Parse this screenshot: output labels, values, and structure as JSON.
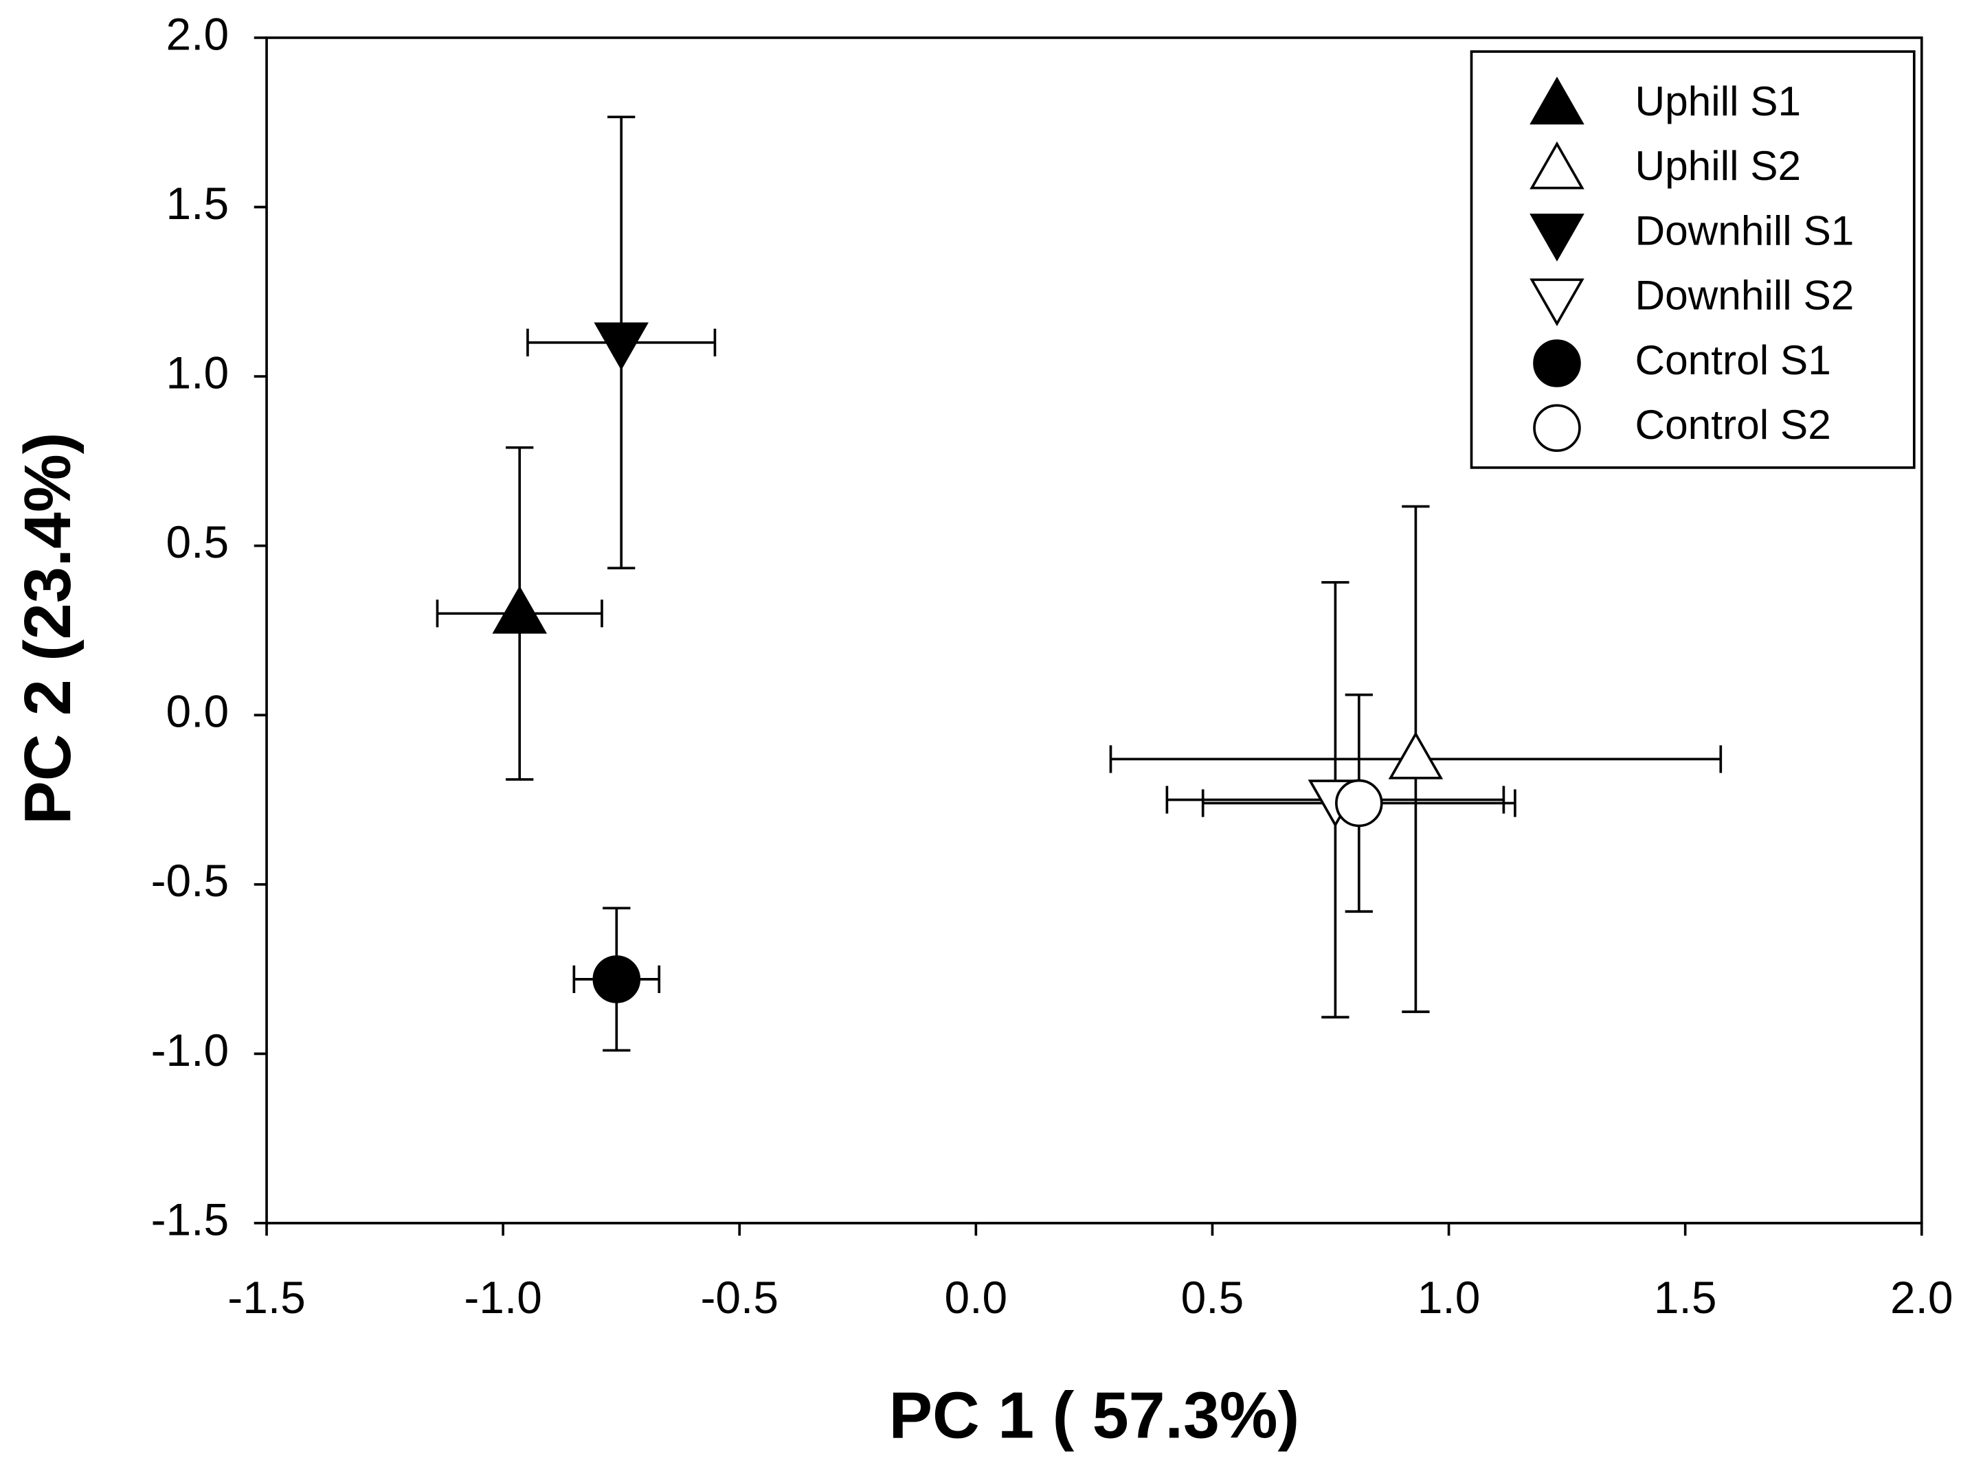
{
  "chart_data": {
    "type": "scatter",
    "xlabel": "PC 1 ( 57.3%)",
    "ylabel": "PC 2 (23.4%)",
    "xlim": [
      -1.5,
      2.0
    ],
    "ylim": [
      -1.5,
      2.0
    ],
    "xticks": [
      {
        "value": -1.5,
        "label": "-1.5"
      },
      {
        "value": -1.0,
        "label": "-1.0"
      },
      {
        "value": -0.5,
        "label": "-0.5"
      },
      {
        "value": 0,
        "label": "0.0"
      },
      {
        "value": 0.5,
        "label": "0.5"
      },
      {
        "value": 1.0,
        "label": "1.0"
      },
      {
        "value": 1.5,
        "label": "1.5"
      },
      {
        "value": 2.0,
        "label": "2.0"
      }
    ],
    "yticks": [
      {
        "value": -1.5,
        "label": "-1.5"
      },
      {
        "value": -1.0,
        "label": "-1.0"
      },
      {
        "value": -0.5,
        "label": "-0.5"
      },
      {
        "value": 0,
        "label": "0.0"
      },
      {
        "value": 0.5,
        "label": "0.5"
      },
      {
        "value": 1.0,
        "label": "1.0"
      },
      {
        "value": 1.5,
        "label": "1.5"
      },
      {
        "value": 2.0,
        "label": "2.0"
      }
    ],
    "legend": "top-right",
    "series": [
      {
        "name": "Uphill S1",
        "marker": "triangle-up",
        "color": "#000000",
        "x": [
          -0.965
        ],
        "values": [
          0.3
        ],
        "xerr": [
          0.174
        ],
        "yerr": [
          0.49
        ]
      },
      {
        "name": "Uphill S2",
        "marker": "triangle-up",
        "color": "#ffffff",
        "x": [
          0.93
        ],
        "values": [
          -0.13
        ],
        "xerr": [
          0.645
        ],
        "yerr": [
          0.746
        ]
      },
      {
        "name": "Downhill S1",
        "marker": "triangle-down",
        "color": "#000000",
        "x": [
          -0.75
        ],
        "values": [
          1.1
        ],
        "xerr": [
          0.198
        ],
        "yerr": [
          0.666
        ]
      },
      {
        "name": "Downhill S2",
        "marker": "triangle-down",
        "color": "#ffffff",
        "x": [
          0.76
        ],
        "values": [
          -0.25
        ],
        "xerr": [
          0.356
        ],
        "yerr": [
          0.642
        ]
      },
      {
        "name": "Control S1",
        "marker": "circle",
        "color": "#000000",
        "x": [
          -0.76
        ],
        "values": [
          -0.78
        ],
        "xerr": [
          0.09
        ],
        "yerr": [
          0.21
        ]
      },
      {
        "name": "Control S2",
        "marker": "circle",
        "color": "#ffffff",
        "x": [
          0.81
        ],
        "values": [
          -0.26
        ],
        "xerr": [
          0.33
        ],
        "yerr": [
          0.32
        ]
      }
    ]
  }
}
